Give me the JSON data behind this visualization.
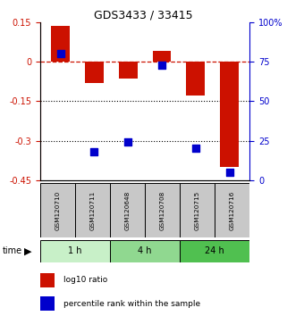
{
  "title": "GDS3433 / 33415",
  "samples": [
    "GSM120710",
    "GSM120711",
    "GSM120648",
    "GSM120708",
    "GSM120715",
    "GSM120716"
  ],
  "log10_ratio": [
    0.135,
    -0.08,
    -0.065,
    0.04,
    -0.13,
    -0.4
  ],
  "percentile_rank": [
    80,
    18,
    24,
    73,
    20,
    5
  ],
  "time_groups": [
    {
      "label": "1 h",
      "cols": [
        0,
        1
      ],
      "color": "#c8f0c8"
    },
    {
      "label": "4 h",
      "cols": [
        2,
        3
      ],
      "color": "#90d890"
    },
    {
      "label": "24 h",
      "cols": [
        4,
        5
      ],
      "color": "#50c050"
    }
  ],
  "ylim_left": [
    -0.45,
    0.15
  ],
  "ylim_right": [
    0,
    100
  ],
  "yticks_left": [
    0.15,
    0,
    -0.15,
    -0.3,
    -0.45
  ],
  "yticks_right": [
    100,
    75,
    50,
    25,
    0
  ],
  "hlines_dotted": [
    -0.15,
    -0.3
  ],
  "bar_color": "#cc1100",
  "square_color": "#0000cc",
  "bar_width": 0.55,
  "background_color": "#ffffff",
  "sample_box_color": "#c8c8c8",
  "legend_red_label": "log10 ratio",
  "legend_blue_label": "percentile rank within the sample"
}
